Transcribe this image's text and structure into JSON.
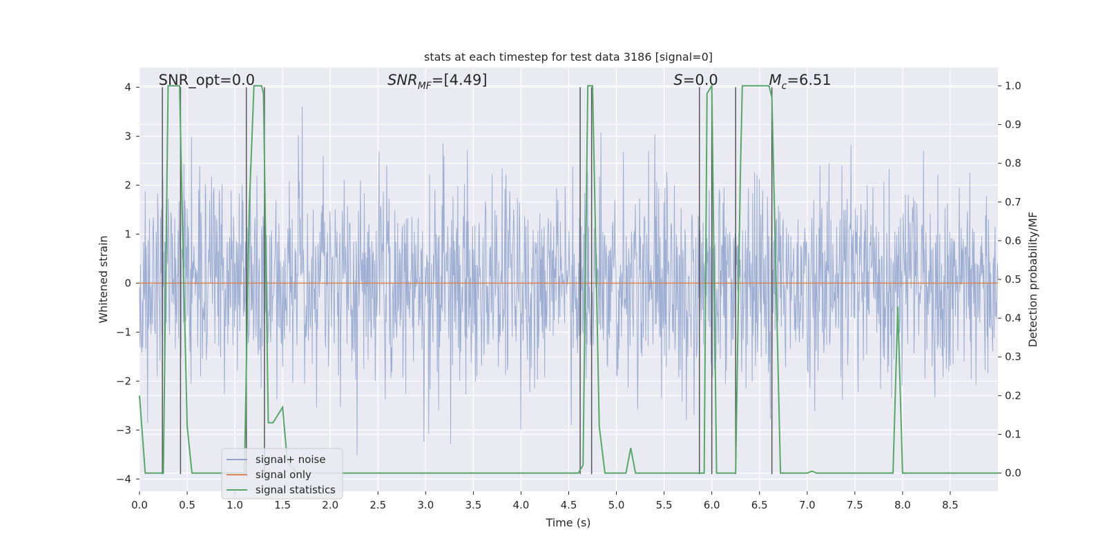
{
  "chart_data": {
    "type": "line",
    "title": "stats at each timestep for test data 3186 [signal=0]",
    "xlabel": "Time (s)",
    "ylabel": "Whitened strain",
    "y2label": "Detection probability/MF",
    "xlim": [
      0.0,
      9.0
    ],
    "ylim": [
      -4.25,
      4.4
    ],
    "y2lim": [
      -0.047,
      1.047
    ],
    "xticks": [
      0.0,
      0.5,
      1.0,
      1.5,
      2.0,
      2.5,
      3.0,
      3.5,
      4.0,
      4.5,
      5.0,
      5.5,
      6.0,
      6.5,
      7.0,
      7.5,
      8.0,
      8.5
    ],
    "xtick_labels": [
      "0.0",
      "0.5",
      "1.0",
      "1.5",
      "2.0",
      "2.5",
      "3.0",
      "3.5",
      "4.0",
      "4.5",
      "5.0",
      "5.5",
      "6.0",
      "6.5",
      "7.0",
      "7.5",
      "8.0",
      "8.5"
    ],
    "yticks": [
      4,
      3,
      2,
      1,
      0,
      -1,
      -2,
      -3,
      -4
    ],
    "ytick_labels": [
      "4",
      "3",
      "2",
      "1",
      "0",
      "−1",
      "−2",
      "−3",
      "−4"
    ],
    "y2ticks": [
      1.0,
      0.9,
      0.8,
      0.7,
      0.6,
      0.5,
      0.4,
      0.3,
      0.2,
      0.1,
      0.0
    ],
    "y2tick_labels": [
      "1.0",
      "0.9",
      "0.8",
      "0.7",
      "0.6",
      "0.5",
      "0.4",
      "0.3",
      "0.2",
      "0.1",
      "0.0"
    ],
    "annotations": [
      {
        "name": "snr-opt",
        "text": "SNR_opt=0.0",
        "italic": false,
        "x": 0.2
      },
      {
        "name": "snr-mf",
        "text": "SNR_MF=[4.49]",
        "italic": true,
        "x": 2.6
      },
      {
        "name": "s-stat",
        "text": "S=0.0",
        "italic": true,
        "x": 5.6
      },
      {
        "name": "chirp-mass",
        "text": "M_c=6.51",
        "italic": true,
        "x": 6.6
      }
    ],
    "legend": {
      "placement": "lower-left",
      "entries": [
        {
          "label": "signal+ noise",
          "color": "#8fa3cc"
        },
        {
          "label": "signal only",
          "color": "#dd8452"
        },
        {
          "label": "signal statistics",
          "color": "#55a868"
        }
      ]
    },
    "series": [
      {
        "name": "signal+ noise",
        "axis": "left",
        "color": "#8fa3cc",
        "kind": "noise",
        "amplitude": "std≈1, peaks ±3.6"
      },
      {
        "name": "signal only",
        "axis": "left",
        "color": "#dd8452",
        "x": [
          0,
          9
        ],
        "y": [
          0,
          0
        ]
      },
      {
        "name": "signal statistics",
        "axis": "right",
        "color": "#55a868",
        "x": [
          0.0,
          0.06,
          0.25,
          0.3,
          0.42,
          0.45,
          0.5,
          0.55,
          0.6,
          0.8,
          0.9,
          1.1,
          1.15,
          1.2,
          1.28,
          1.3,
          1.35,
          1.4,
          1.5,
          1.55,
          1.65,
          2.0,
          4.5,
          4.6,
          4.65,
          4.7,
          4.75,
          4.82,
          4.88,
          5.0,
          5.1,
          5.15,
          5.2,
          5.85,
          5.88,
          5.92,
          5.95,
          6.0,
          6.05,
          6.08,
          6.2,
          6.25,
          6.3,
          6.32,
          6.6,
          6.63,
          6.72,
          6.8,
          6.9,
          7.0,
          7.05,
          7.1,
          7.5,
          7.6,
          7.85,
          7.9,
          7.95,
          8.0,
          8.05,
          9.0
        ],
        "y": [
          0.2,
          0.0,
          0.0,
          1.0,
          1.0,
          0.65,
          0.12,
          0.0,
          0.0,
          0.0,
          0.0,
          0.0,
          0.68,
          1.0,
          1.0,
          0.98,
          0.13,
          0.13,
          0.17,
          0.03,
          0.0,
          0.0,
          0.0,
          0.0,
          0.02,
          1.0,
          1.0,
          0.12,
          0.0,
          0.0,
          0.0,
          0.065,
          0.0,
          0.0,
          0.0,
          0.0,
          0.98,
          1.0,
          0.0,
          0.0,
          0.0,
          0.0,
          0.78,
          1.0,
          1.0,
          0.97,
          0.0,
          0.0,
          0.0,
          0.0,
          0.005,
          0.0,
          0.0,
          0.0,
          0.0,
          0.0,
          0.43,
          0.0,
          0.0,
          0.0
        ]
      },
      {
        "name": "vertical markers",
        "axis": "left",
        "color": "#555555",
        "kind": "vlines",
        "x": [
          0.24,
          0.43,
          1.12,
          1.31,
          4.62,
          4.74,
          5.87,
          6.0,
          6.25,
          6.63
        ],
        "ymin": -3.9,
        "ymax": 4.0
      }
    ]
  }
}
